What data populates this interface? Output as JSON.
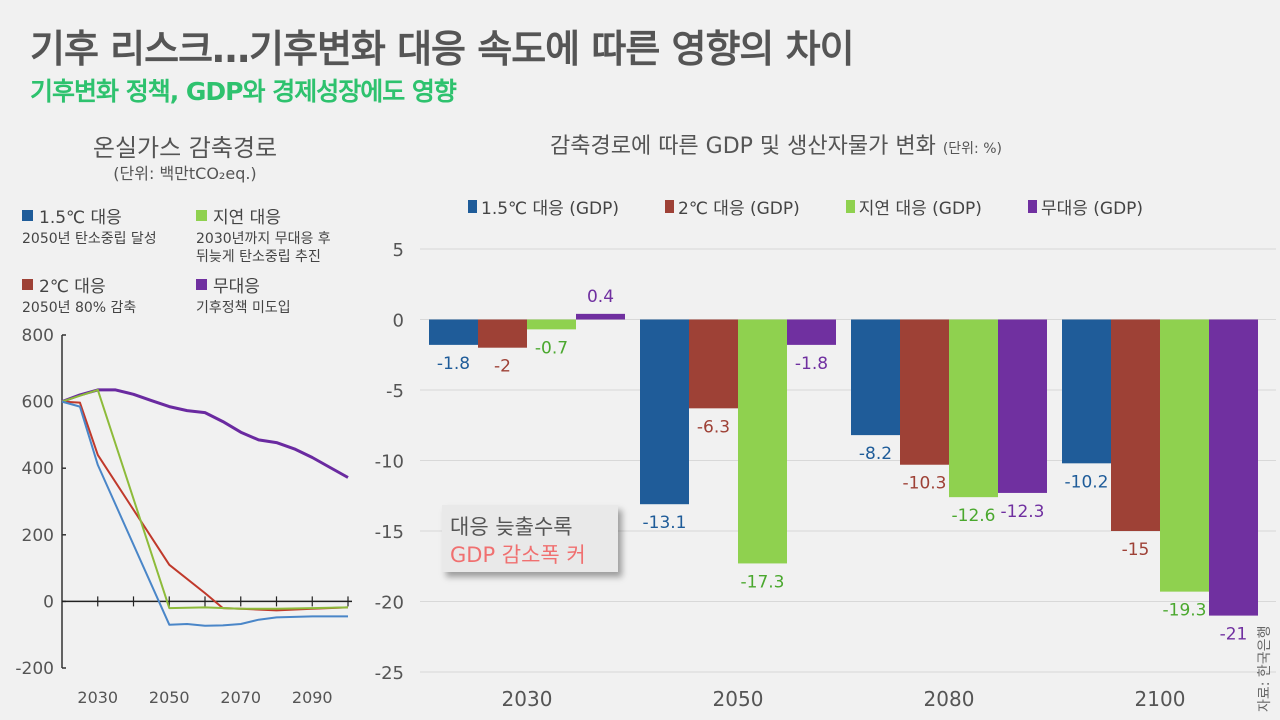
{
  "header": {
    "title": "기후 리스크…기후변화 대응 속도에 따른 영향의 차이",
    "subtitle": "기후변화 정책, GDP와 경제성장에도 영향"
  },
  "colors": {
    "s15": "#1f5c99",
    "s2": "#9e4136",
    "delay": "#8fd14f",
    "none": "#7030a0",
    "line15": "#4a86c8",
    "line2": "#c0392b",
    "lineDelay": "#8dbb3a",
    "lineNone": "#6a2aa0",
    "labelDelay": "#4aa82e",
    "subtitle": "#2ec26e",
    "callout_red": "#f07070"
  },
  "callout": {
    "line1": "대응 늦출수록",
    "line2": "GDP 감소폭 커"
  },
  "source": "자료: 한국은행",
  "chart_data": [
    {
      "type": "line",
      "title": "온실가스 감축경로",
      "unit": "(단위: 백만tCO₂eq.)",
      "xlabel": "",
      "ylabel": "",
      "xlim": [
        2020,
        2100
      ],
      "ylim": [
        -200,
        800
      ],
      "yticks": [
        800,
        600,
        400,
        200,
        0,
        -200
      ],
      "xtick_labels": [
        2030,
        2050,
        2070,
        2090
      ],
      "xtick_marks": [
        2030,
        2040,
        2050,
        2060,
        2070,
        2080,
        2090,
        2100
      ],
      "legend": [
        {
          "key": "line15",
          "name": "1.5℃ 대응",
          "desc": [
            "2050년 탄소중립 달성"
          ]
        },
        {
          "key": "lineDelay",
          "name": "지연 대응",
          "desc": [
            "2030년까지 무대응 후",
            "뒤늦게 탄소중립 추진"
          ]
        },
        {
          "key": "line2",
          "name": "2℃ 대응",
          "desc": [
            "2050년 80% 감축"
          ]
        },
        {
          "key": "lineNone",
          "name": "무대응",
          "desc": [
            "기후정책 미도입"
          ]
        }
      ],
      "series": [
        {
          "name": "1.5℃ 대응",
          "key": "line15",
          "x": [
            2020,
            2025,
            2030,
            2050,
            2055,
            2060,
            2065,
            2070,
            2075,
            2080,
            2090,
            2100
          ],
          "y": [
            600,
            585,
            410,
            -70,
            -68,
            -73,
            -72,
            -68,
            -55,
            -48,
            -45,
            -45
          ]
        },
        {
          "name": "2℃ 대응",
          "key": "line2",
          "x": [
            2020,
            2025,
            2030,
            2050,
            2060,
            2065,
            2070,
            2080,
            2090,
            2100
          ],
          "y": [
            600,
            597,
            440,
            110,
            25,
            -20,
            -22,
            -27,
            -22,
            -18
          ]
        },
        {
          "name": "지연 대응",
          "key": "lineDelay",
          "x": [
            2020,
            2030,
            2050,
            2060,
            2070,
            2080,
            2090,
            2100
          ],
          "y": [
            600,
            635,
            -20,
            -18,
            -22,
            -22,
            -20,
            -18
          ]
        },
        {
          "name": "무대응",
          "key": "lineNone",
          "x": [
            2020,
            2025,
            2030,
            2035,
            2040,
            2045,
            2050,
            2055,
            2060,
            2065,
            2070,
            2075,
            2080,
            2085,
            2090,
            2095,
            2100
          ],
          "y": [
            600,
            620,
            635,
            635,
            622,
            603,
            585,
            573,
            567,
            540,
            508,
            485,
            477,
            458,
            432,
            402,
            372
          ]
        }
      ]
    },
    {
      "type": "bar",
      "title": "감축경로에 따른 GDP 및 생산자물가 변화",
      "unit": "(단위: %)",
      "xlabel": "",
      "ylabel": "",
      "ylim": [
        -25,
        5
      ],
      "yticks": [
        5,
        0,
        -5,
        -10,
        -15,
        -20,
        -25
      ],
      "grid": true,
      "legend_position": "top",
      "categories": [
        "2030",
        "2050",
        "2080",
        "2100"
      ],
      "series": [
        {
          "name": "1.5℃ 대응 (GDP)",
          "key": "s15",
          "values": [
            -1.8,
            -13.1,
            -8.2,
            -10.2
          ]
        },
        {
          "name": "2℃ 대응 (GDP)",
          "key": "s2",
          "values": [
            -2,
            -6.3,
            -10.3,
            -15
          ]
        },
        {
          "name": "지연 대응 (GDP)",
          "key": "delay",
          "values": [
            -0.7,
            -17.3,
            -12.6,
            -19.3
          ]
        },
        {
          "name": "무대응 (GDP)",
          "key": "none",
          "values": [
            0.4,
            -1.8,
            -12.3,
            -21
          ]
        }
      ]
    }
  ]
}
